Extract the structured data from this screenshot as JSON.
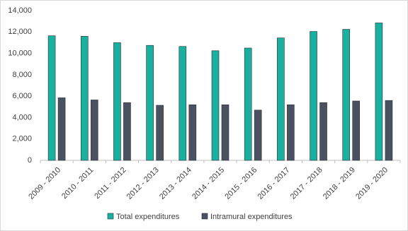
{
  "chart_data": {
    "type": "bar",
    "categories": [
      "2009 - 2010",
      "2010 - 2011",
      "2011 - 2012",
      "2012 - 2013",
      "2013 - 2014",
      "2014 - 2015",
      "2015 - 2016",
      "2016 - 2017",
      "2017 - 2018",
      "2018 - 2019",
      "2019 - 2020"
    ],
    "series": [
      {
        "name": "Total expenditures",
        "color": "#1ab0a0",
        "values": [
          11650,
          11600,
          11000,
          10750,
          10650,
          10250,
          10500,
          11450,
          12050,
          12250,
          12850
        ]
      },
      {
        "name": "Intramural expenditures",
        "color": "#4a5160",
        "values": [
          5850,
          5650,
          5400,
          5150,
          5200,
          5200,
          4700,
          5200,
          5400,
          5550,
          5600
        ]
      }
    ],
    "ylim": [
      0,
      14000
    ],
    "yticks": [
      0,
      {
        "value": 2000,
        "label": "2,000"
      },
      {
        "value": 4000,
        "label": "4,000"
      },
      {
        "value": 6000,
        "label": "6,000"
      },
      {
        "value": 8000,
        "label": "8,000"
      },
      {
        "value": 10000,
        "label": "10,000"
      },
      {
        "value": 12000,
        "label": "12,000"
      },
      {
        "value": 14000,
        "label": "14,000"
      }
    ],
    "grid": false,
    "legend": "bottom"
  }
}
